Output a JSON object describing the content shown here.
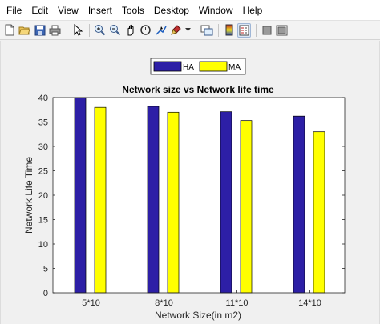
{
  "menu": {
    "items": [
      "File",
      "Edit",
      "View",
      "Insert",
      "Tools",
      "Desktop",
      "Window",
      "Help"
    ]
  },
  "toolbar": {
    "icons": [
      "new-file-icon",
      "open-folder-icon",
      "save-icon",
      "print-icon",
      "pointer-icon",
      "zoom-in-icon",
      "zoom-out-icon",
      "pan-icon",
      "rotate-3d-icon",
      "data-cursor-icon",
      "brush-icon",
      "link-plot-icon",
      "insert-colorbar-icon",
      "insert-legend-icon",
      "hide-plot-tools-icon",
      "show-plot-tools-icon"
    ]
  },
  "colors": {
    "HA": "#2d1fa6",
    "MA": "#ffff00",
    "figure_bg": "#f0f0f0",
    "axes_bg": "#ffffff"
  },
  "chart_data": {
    "type": "bar",
    "title": "Network size vs Network life time",
    "xlabel": "Network Size(in m2)",
    "ylabel": "Network Life Time",
    "categories": [
      "5*10",
      "8*10",
      "11*10",
      "14*10"
    ],
    "series": [
      {
        "name": "HA",
        "values": [
          40,
          38.2,
          37.1,
          36.2
        ]
      },
      {
        "name": "MA",
        "values": [
          38,
          37,
          35.3,
          33
        ]
      }
    ],
    "ylim": [
      0,
      40
    ],
    "yticks": [
      0,
      5,
      10,
      15,
      20,
      25,
      30,
      35,
      40
    ],
    "legend_position": "top-center",
    "grid": false
  }
}
